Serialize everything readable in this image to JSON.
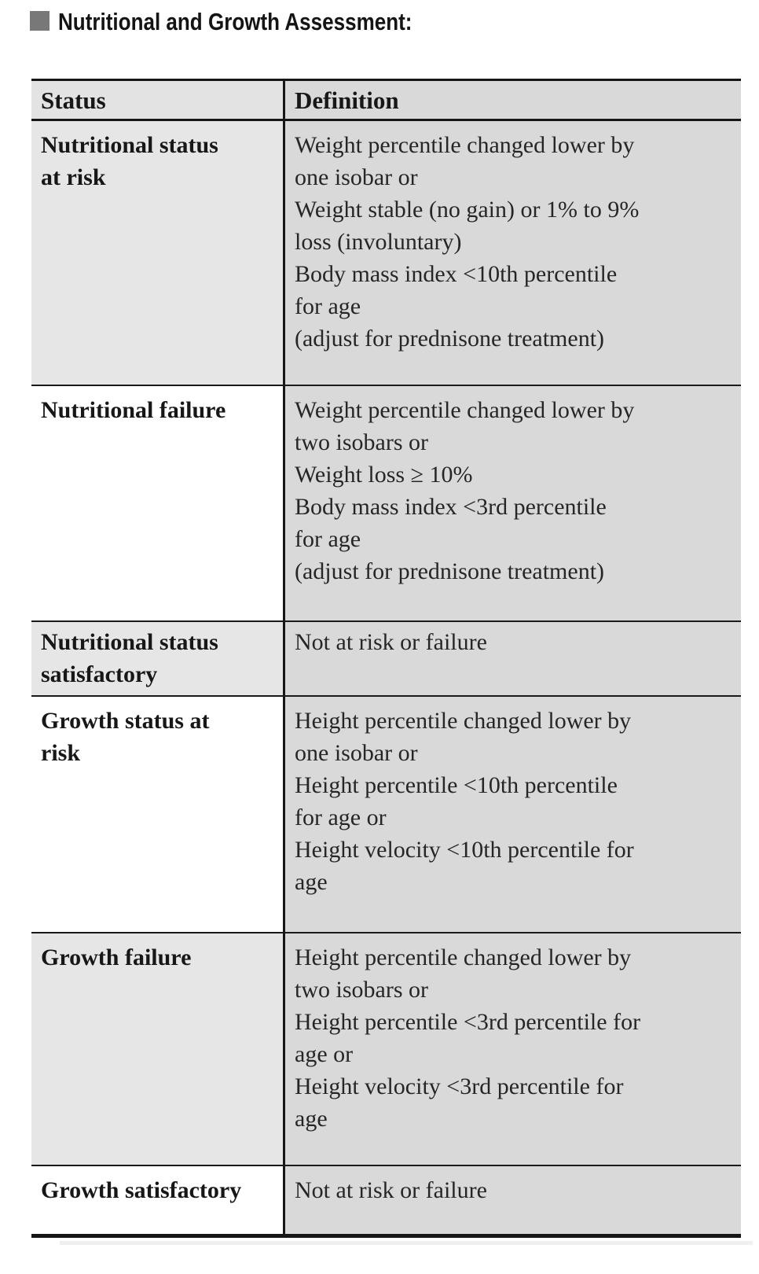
{
  "title": "Nutritional and Growth Assessment:",
  "icons": {
    "bullet": "gray-square-bullet"
  },
  "colors": {
    "definition_column_bg": "#d9d9d9",
    "status_column_alt_bg": "#e6e6e6",
    "header_bg": "#e3e3e3",
    "rule": "#161616",
    "bullet": "#787878",
    "text": "#242424"
  },
  "table": {
    "columns": [
      "Status",
      "Definition"
    ],
    "rows": [
      {
        "status": "Nutritional status\nat risk",
        "definition": "Weight percentile changed lower by\none isobar or\nWeight stable (no gain) or 1% to 9%\nloss (involuntary)\nBody mass index <10th percentile\nfor age\n(adjust for prednisone treatment)"
      },
      {
        "status": "Nutritional failure",
        "definition": "Weight percentile changed lower by\ntwo isobars or\nWeight loss ≥ 10%\nBody mass index <3rd percentile\nfor age\n(adjust for prednisone treatment)"
      },
      {
        "status": "Nutritional status\nsatisfactory",
        "definition": "Not at risk or failure"
      },
      {
        "status": "Growth status at\nrisk",
        "definition": "Height percentile changed lower by\none isobar or\nHeight percentile <10th percentile\nfor age or\nHeight velocity <10th percentile for\nage"
      },
      {
        "status": "Growth failure",
        "definition": "Height percentile changed lower by\ntwo isobars or\nHeight percentile <3rd percentile for\nage or\nHeight velocity <3rd percentile for\nage"
      },
      {
        "status": "Growth satisfactory",
        "definition": "Not at risk or failure"
      }
    ]
  }
}
